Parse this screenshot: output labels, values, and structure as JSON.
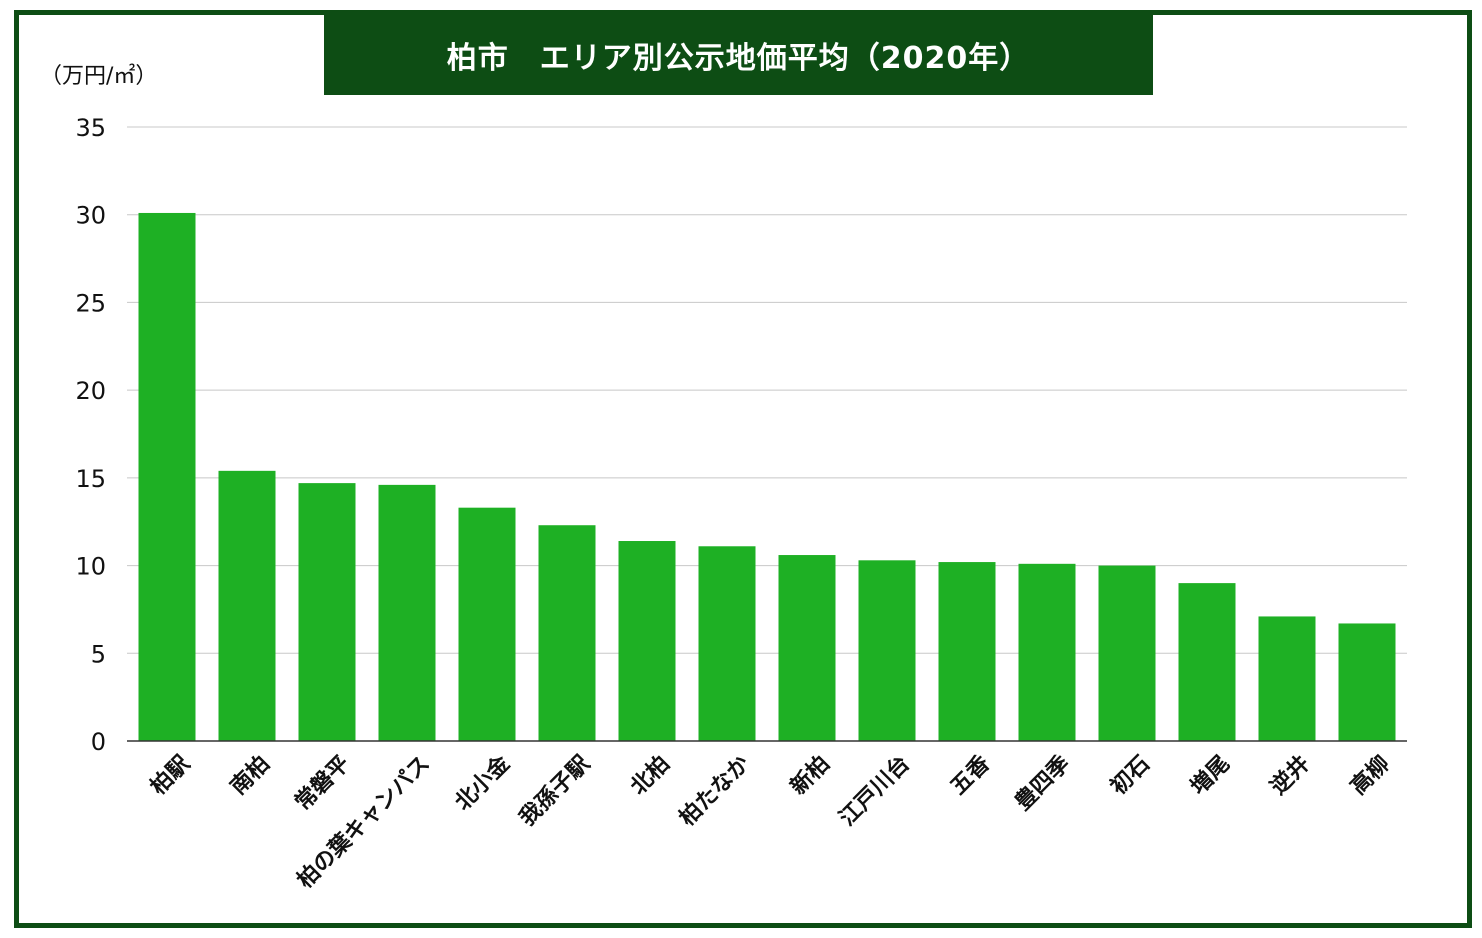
{
  "colors": {
    "frame": "#0d4d14",
    "title_bg": "#0d4d14",
    "title_text": "#ffffff",
    "bar": "#1eb024",
    "grid": "#c8c8c8",
    "axis": "#333333"
  },
  "chart_data": {
    "type": "bar",
    "title": "柏市　エリア別公示地価平均（2020年）",
    "ylabel": "（万円/㎡）",
    "xlabel": "",
    "ylim": [
      0,
      35
    ],
    "yticks": [
      "0",
      "5",
      "10",
      "15",
      "20",
      "25",
      "30",
      "35"
    ],
    "ytick_values": [
      0,
      5,
      10,
      15,
      20,
      25,
      30,
      35
    ],
    "grid": true,
    "legend": "none",
    "categories": [
      [
        "柏駅"
      ],
      [
        "南柏"
      ],
      [
        "常磐平"
      ],
      [
        "柏の葉キャンパス"
      ],
      [
        "北小金"
      ],
      [
        "我孫子駅"
      ],
      [
        "北柏"
      ],
      [
        "柏たなか"
      ],
      [
        "新柏"
      ],
      [
        "江戸川台"
      ],
      [
        "五香"
      ],
      [
        "豊四季"
      ],
      [
        "初石"
      ],
      [
        "増尾"
      ],
      [
        "逆井"
      ],
      [
        "高柳"
      ]
    ],
    "values": [
      30.1,
      15.4,
      14.7,
      14.6,
      13.3,
      12.3,
      11.4,
      11.1,
      10.6,
      10.3,
      10.2,
      10.1,
      10.0,
      9.0,
      7.1,
      6.7
    ]
  }
}
